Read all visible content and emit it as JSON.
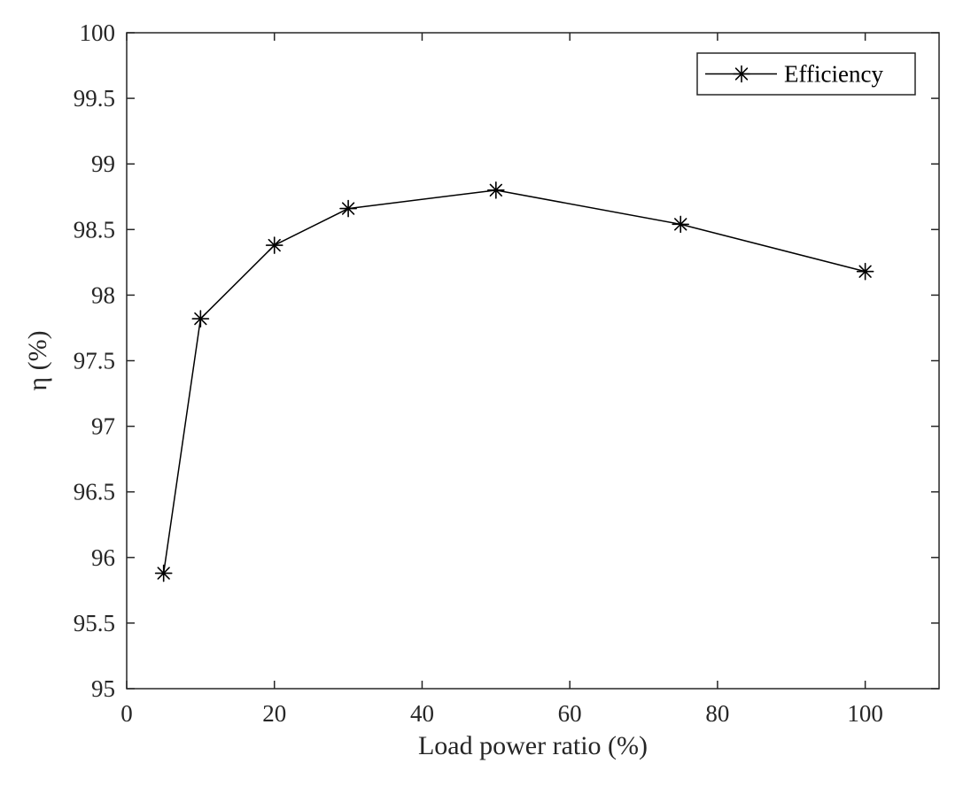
{
  "chart_data": {
    "type": "line",
    "title": "",
    "xlabel": "Load power ratio (%)",
    "ylabel": "η (%)",
    "xlim": [
      0,
      110
    ],
    "ylim": [
      95,
      100
    ],
    "x_ticks": [
      0,
      20,
      40,
      60,
      80,
      100
    ],
    "x_tick_labels": [
      "0",
      "20",
      "40",
      "60",
      "80",
      "100"
    ],
    "y_ticks": [
      95,
      95.5,
      96,
      96.5,
      97,
      97.5,
      98,
      98.5,
      99,
      99.5,
      100
    ],
    "y_tick_labels": [
      "95",
      "95.5",
      "96",
      "96.5",
      "97",
      "97.5",
      "98",
      "98.5",
      "99",
      "99.5",
      "100"
    ],
    "grid": false,
    "legend_position": "top-right",
    "series": [
      {
        "name": "Efficiency",
        "marker": "asterisk",
        "color": "#000000",
        "x": [
          5,
          10,
          20,
          30,
          50,
          75,
          100
        ],
        "y": [
          95.88,
          97.82,
          98.38,
          98.66,
          98.8,
          98.54,
          98.18
        ]
      }
    ]
  }
}
